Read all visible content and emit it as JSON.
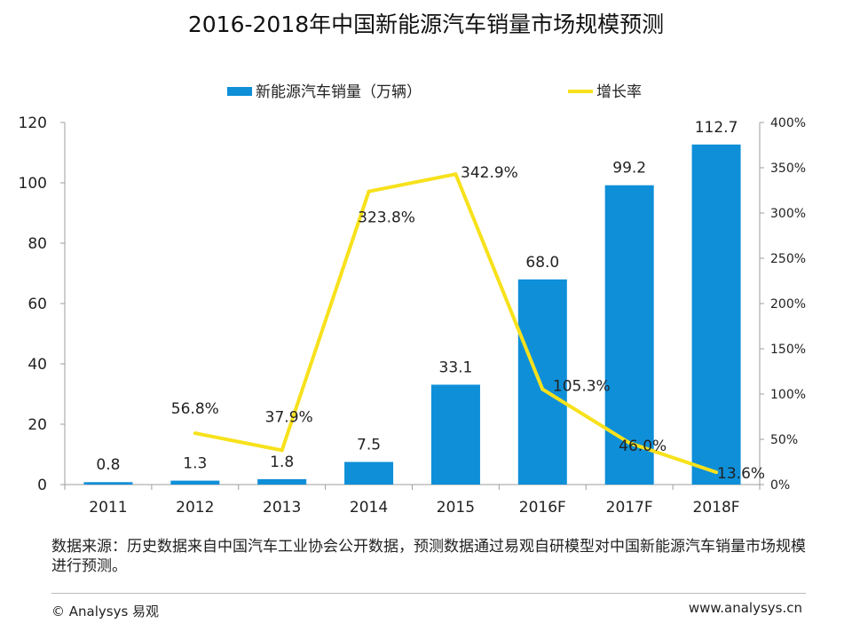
{
  "title": "2016-2018年中国新能源汽车销量市场规模预测",
  "chart_data": {
    "type": "bar",
    "categories": [
      "2011",
      "2012",
      "2013",
      "2014",
      "2015",
      "2016F",
      "2017F",
      "2018F"
    ],
    "series": [
      {
        "name": "新能源汽车销量（万辆）",
        "kind": "bar",
        "axis": "left",
        "values": [
          0.8,
          1.3,
          1.8,
          7.5,
          33.1,
          68.0,
          99.2,
          112.7
        ],
        "labels": [
          "0.8",
          "1.3",
          "1.8",
          "7.5",
          "33.1",
          "68.0",
          "99.2",
          "112.7"
        ]
      },
      {
        "name": "增长率",
        "kind": "line",
        "axis": "right",
        "values": [
          null,
          56.8,
          37.9,
          323.8,
          342.9,
          105.3,
          46.0,
          13.6
        ],
        "labels": [
          "",
          "56.8%",
          "37.9%",
          "323.8%",
          "342.9%",
          "105.3%",
          "46.0%",
          "13.6%"
        ]
      }
    ],
    "y_left": {
      "lim": [
        0,
        120
      ],
      "ticks": [
        "0",
        "20",
        "40",
        "60",
        "80",
        "100",
        "120"
      ]
    },
    "y_right": {
      "lim": [
        0,
        400
      ],
      "ticks": [
        "0%",
        "50%",
        "100%",
        "150%",
        "200%",
        "250%",
        "300%",
        "350%",
        "400%"
      ]
    },
    "legend_position": "top-center",
    "grid": false,
    "colors": {
      "bar": "#0e8fd8",
      "line": "#f7e11b",
      "axis": "#9e9e9e"
    }
  },
  "source_note": "数据来源：历史数据来自中国汽车工业协会公开数据，预测数据通过易观自研模型对中国新能源汽车销量市场规模进行预测。",
  "footer": {
    "copyright": "© Analysys 易观",
    "website": "www.analysys.cn"
  }
}
